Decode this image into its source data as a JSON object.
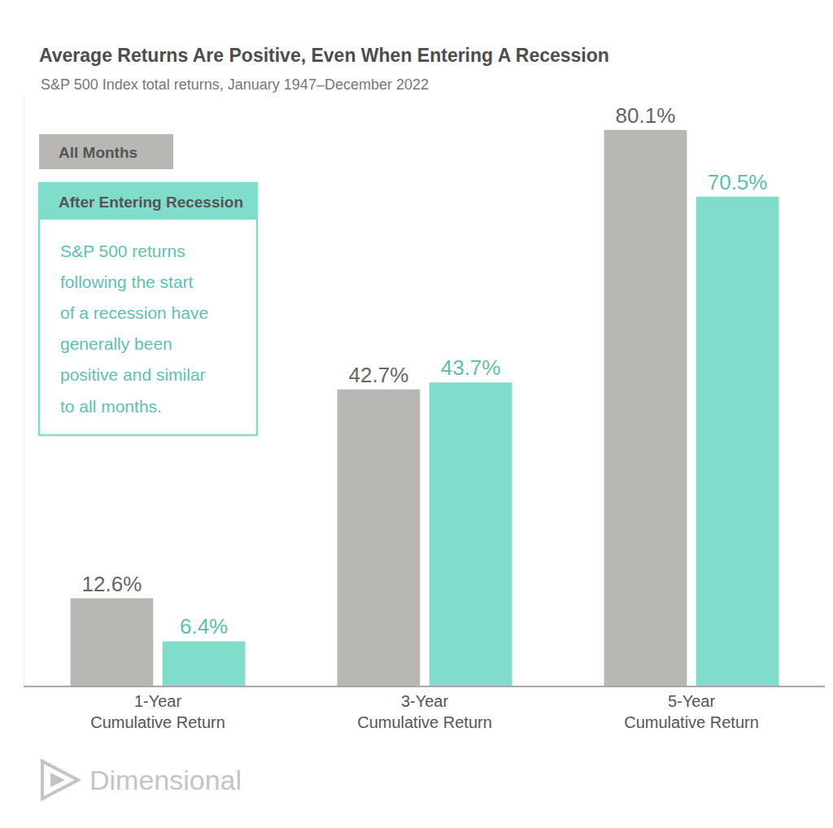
{
  "chart_data": {
    "type": "bar",
    "title": "Average Returns Are Positive, Even When Entering A Recession",
    "subtitle": "S&P 500 Index total returns, January 1947–December 2022",
    "categories": [
      "1-Year Cumulative Return",
      "3-Year Cumulative Return",
      "5-Year Cumulative Return"
    ],
    "series": [
      {
        "name": "All Months",
        "color": "#b9b7b4",
        "values": [
          12.6,
          42.7,
          80.1
        ],
        "value_labels": [
          "12.6%",
          "42.7%",
          "80.1%"
        ]
      },
      {
        "name": "After Entering Recession",
        "color": "#80dccb",
        "values": [
          6.4,
          43.7,
          70.5
        ],
        "value_labels": [
          "6.4%",
          "43.7%",
          "70.5%"
        ]
      }
    ],
    "ylim": [
      0,
      85
    ],
    "tick_labels": "x",
    "data_labels": true,
    "grid": false,
    "legend": "top left",
    "annotations": [
      {
        "text": "S&P 500 returns\nfollowing the start\nof a recession have\ngenerally been\npositive and similar\nto all months."
      }
    ],
    "source": "Dimensional"
  }
}
